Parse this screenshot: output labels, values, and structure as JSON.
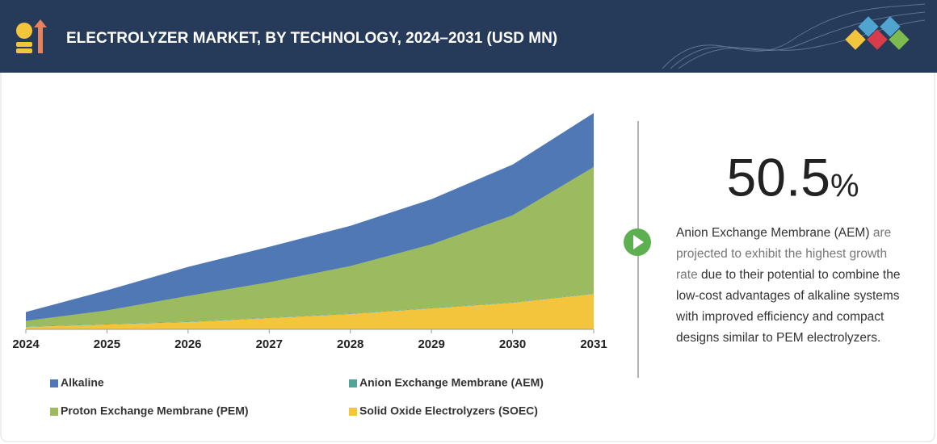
{
  "header": {
    "title": "ELECTROLYZER MARKET, BY TECHNOLOGY, 2024–2031 (USD MN)"
  },
  "chart_data": {
    "type": "stacked_area",
    "categories": [
      "2024",
      "2025",
      "2026",
      "2027",
      "2028",
      "2029",
      "2030",
      "2031"
    ],
    "series": [
      {
        "name": "Solid Oxide Electrolyzers (SOEC)",
        "color": "#f2c53d",
        "values": [
          3,
          6,
          9,
          14,
          19,
          26,
          33,
          44
        ]
      },
      {
        "name": "Anion Exchange Membrane (AEM)",
        "color": "#4fa59a",
        "values": [
          0.5,
          0.5,
          0.5,
          0.5,
          0.5,
          0.5,
          0.5,
          0.5
        ]
      },
      {
        "name": "Proton Exchange Membrane (PEM)",
        "color": "#9cba5e",
        "values": [
          7,
          17,
          32,
          44,
          59,
          79,
          108,
          157
        ]
      },
      {
        "name": "Alkaline",
        "color": "#4f78b5",
        "values": [
          11,
          25,
          36,
          44,
          50,
          56,
          63,
          67
        ]
      }
    ],
    "legend_order": [
      3,
      1,
      2,
      0
    ]
  },
  "callout": {
    "value": "50.5",
    "unit": "%",
    "text": [
      "Anion Exchange Membrane (AEM)",
      "are projected to exhibit the highest growth rate",
      "due to their potential to combine the low-cost advantages of alkaline systems with improved efficiency and compact designs similar to PEM electrolyzers."
    ]
  }
}
